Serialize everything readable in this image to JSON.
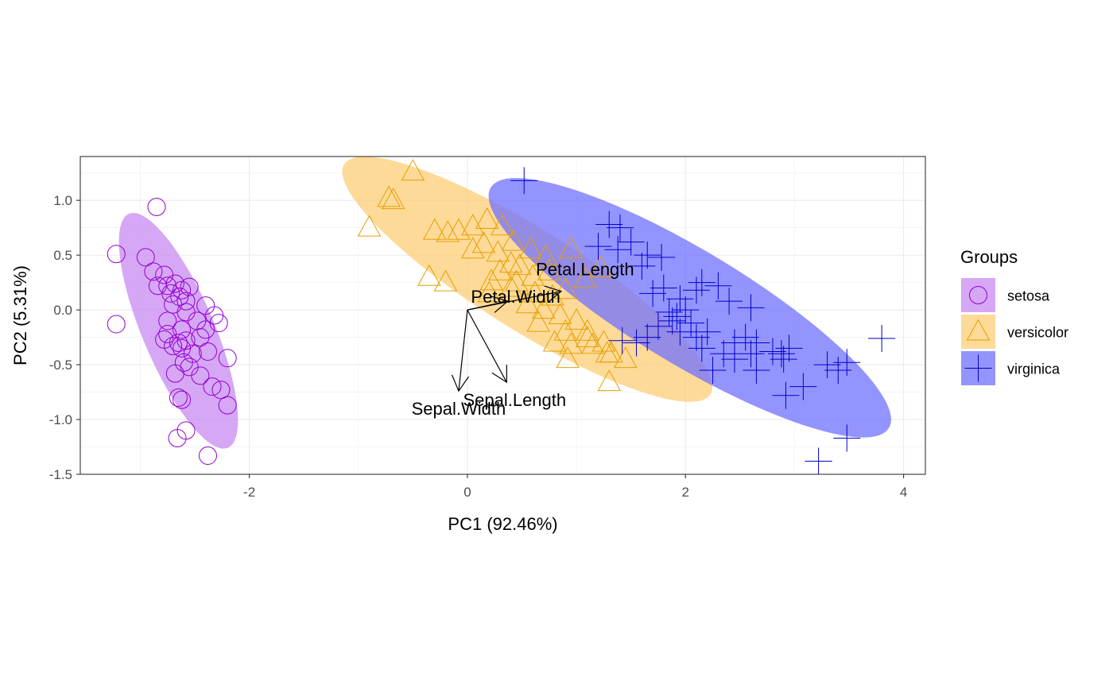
{
  "chart_data": {
    "type": "scatter",
    "title": "",
    "xlabel": "PC1 (92.46%)",
    "ylabel": "PC2 (5.31%)",
    "xlim": [
      -3.55,
      4.2
    ],
    "ylim": [
      -1.5,
      1.4
    ],
    "x_ticks": [
      -2,
      0,
      2,
      4
    ],
    "y_ticks": [
      1.0,
      0.5,
      0.0,
      -0.5,
      -1.0,
      -1.5
    ],
    "x_tick_labels": [
      "-2",
      "0",
      "2",
      "4"
    ],
    "y_tick_labels": [
      "1.0",
      "0.5",
      "0.0",
      "-0.5",
      "-1.0",
      "-1.5"
    ],
    "grid": true,
    "legend": {
      "title": "Groups",
      "placement": "right",
      "entries": [
        "setosa",
        "versicolor",
        "virginica"
      ]
    },
    "series": [
      {
        "name": "setosa",
        "color": "#9400D3",
        "fill": "#C88AF0",
        "shape": "circle",
        "ellipse": {
          "cx": -2.65,
          "cy": -0.19,
          "rx": 1.16,
          "ry": 0.33,
          "angle": -67
        },
        "points": [
          [
            -2.85,
            0.94
          ],
          [
            -3.22,
            0.51
          ],
          [
            -2.95,
            0.48
          ],
          [
            -2.88,
            0.35
          ],
          [
            -2.78,
            0.32
          ],
          [
            -2.75,
            0.22
          ],
          [
            -2.68,
            0.24
          ],
          [
            -2.62,
            0.18
          ],
          [
            -2.55,
            0.21
          ],
          [
            -2.72,
            0.15
          ],
          [
            -2.58,
            0.08
          ],
          [
            -2.64,
            0.12
          ],
          [
            -2.84,
            0.22
          ],
          [
            -2.7,
            0.05
          ],
          [
            -3.22,
            -0.13
          ],
          [
            -2.4,
            0.04
          ],
          [
            -2.32,
            -0.05
          ],
          [
            -2.48,
            -0.1
          ],
          [
            -2.58,
            -0.02
          ],
          [
            -2.75,
            -0.1
          ],
          [
            -2.62,
            -0.18
          ],
          [
            -2.4,
            -0.18
          ],
          [
            -2.28,
            -0.12
          ],
          [
            -2.78,
            -0.27
          ],
          [
            -2.65,
            -0.3
          ],
          [
            -2.7,
            -0.33
          ],
          [
            -2.58,
            -0.28
          ],
          [
            -2.52,
            -0.4
          ],
          [
            -2.38,
            -0.38
          ],
          [
            -2.2,
            -0.44
          ],
          [
            -2.55,
            -0.52
          ],
          [
            -2.6,
            -0.48
          ],
          [
            -2.45,
            -0.6
          ],
          [
            -2.68,
            -0.58
          ],
          [
            -2.34,
            -0.7
          ],
          [
            -2.26,
            -0.73
          ],
          [
            -2.62,
            -0.82
          ],
          [
            -2.65,
            -0.8
          ],
          [
            -2.2,
            -0.87
          ],
          [
            -2.58,
            -1.1
          ],
          [
            -2.66,
            -1.17
          ],
          [
            -2.38,
            -1.33
          ],
          [
            -2.75,
            -0.22
          ],
          [
            -2.45,
            -0.25
          ],
          [
            -2.62,
            -0.35
          ]
        ]
      },
      {
        "name": "versicolor",
        "color": "#E69F00",
        "fill": "#FCCD75",
        "shape": "triangle",
        "ellipse": {
          "cx": 0.55,
          "cy": 0.28,
          "rx": 1.98,
          "ry": 0.46,
          "angle": -32
        },
        "points": [
          [
            -0.5,
            1.26
          ],
          [
            -0.72,
            1.02
          ],
          [
            -0.68,
            1.0
          ],
          [
            -0.9,
            0.75
          ],
          [
            -0.3,
            0.72
          ],
          [
            -0.18,
            0.7
          ],
          [
            -0.08,
            0.72
          ],
          [
            0.05,
            0.76
          ],
          [
            0.18,
            0.82
          ],
          [
            0.32,
            0.76
          ],
          [
            0.42,
            0.62
          ],
          [
            0.15,
            0.6
          ],
          [
            0.05,
            0.55
          ],
          [
            0.28,
            0.52
          ],
          [
            0.58,
            0.55
          ],
          [
            0.72,
            0.48
          ],
          [
            0.95,
            0.55
          ],
          [
            0.48,
            0.4
          ],
          [
            0.3,
            0.35
          ],
          [
            0.6,
            0.3
          ],
          [
            0.45,
            0.25
          ],
          [
            0.22,
            0.26
          ],
          [
            0.4,
            0.2
          ],
          [
            0.62,
            0.15
          ],
          [
            0.78,
            0.12
          ],
          [
            0.9,
            0.18
          ],
          [
            1.08,
            0.28
          ],
          [
            1.22,
            0.38
          ],
          [
            -0.35,
            0.3
          ],
          [
            -0.2,
            0.25
          ],
          [
            0.2,
            0.15
          ],
          [
            0.55,
            0.05
          ],
          [
            0.7,
            0.0
          ],
          [
            0.85,
            -0.05
          ],
          [
            1.0,
            -0.1
          ],
          [
            0.65,
            -0.12
          ],
          [
            0.9,
            -0.2
          ],
          [
            1.1,
            -0.2
          ],
          [
            0.8,
            -0.3
          ],
          [
            0.95,
            -0.32
          ],
          [
            1.15,
            -0.32
          ],
          [
            1.25,
            -0.3
          ],
          [
            1.32,
            -0.4
          ],
          [
            0.92,
            -0.45
          ],
          [
            1.28,
            -0.4
          ],
          [
            1.45,
            -0.45
          ],
          [
            1.3,
            -0.66
          ],
          [
            1.1,
            -0.26
          ],
          [
            0.4,
            0.42
          ],
          [
            0.75,
            0.35
          ]
        ]
      },
      {
        "name": "virginica",
        "color": "#0000CD",
        "fill": "#7070FF",
        "shape": "plus",
        "ellipse": {
          "cx": 2.04,
          "cy": 0.02,
          "rx": 2.13,
          "ry": 0.52,
          "angle": -31
        },
        "points": [
          [
            0.52,
            1.18
          ],
          [
            1.3,
            0.78
          ],
          [
            1.4,
            0.75
          ],
          [
            1.5,
            0.62
          ],
          [
            1.65,
            0.5
          ],
          [
            1.2,
            0.58
          ],
          [
            1.38,
            0.55
          ],
          [
            1.78,
            0.48
          ],
          [
            1.6,
            0.4
          ],
          [
            2.15,
            0.25
          ],
          [
            2.3,
            0.22
          ],
          [
            1.8,
            0.2
          ],
          [
            2.1,
            0.18
          ],
          [
            2.4,
            0.08
          ],
          [
            1.95,
            0.1
          ],
          [
            1.7,
            0.15
          ],
          [
            2.6,
            0.02
          ],
          [
            1.85,
            -0.02
          ],
          [
            1.92,
            -0.06
          ],
          [
            2.05,
            -0.12
          ],
          [
            1.88,
            -0.1
          ],
          [
            1.75,
            -0.15
          ],
          [
            2.2,
            -0.2
          ],
          [
            2.45,
            -0.3
          ],
          [
            2.1,
            -0.25
          ],
          [
            1.95,
            -0.2
          ],
          [
            2.55,
            -0.25
          ],
          [
            2.65,
            -0.3
          ],
          [
            2.8,
            -0.38
          ],
          [
            2.35,
            -0.4
          ],
          [
            2.15,
            -0.35
          ],
          [
            2.45,
            -0.45
          ],
          [
            2.6,
            -0.4
          ],
          [
            2.25,
            -0.55
          ],
          [
            2.65,
            -0.55
          ],
          [
            2.95,
            -0.35
          ],
          [
            3.3,
            -0.5
          ],
          [
            3.4,
            -0.55
          ],
          [
            3.48,
            -0.48
          ],
          [
            3.8,
            -0.26
          ],
          [
            2.92,
            -0.78
          ],
          [
            3.08,
            -0.7
          ],
          [
            2.88,
            -0.4
          ],
          [
            3.48,
            -1.17
          ],
          [
            3.22,
            -1.38
          ],
          [
            2.9,
            -0.45
          ],
          [
            1.65,
            -0.25
          ],
          [
            1.55,
            -0.3
          ],
          [
            1.42,
            -0.28
          ],
          [
            2.0,
            0.0
          ]
        ]
      }
    ],
    "loadings": [
      {
        "name": "Petal.Length",
        "x": 0.86,
        "y": 0.17
      },
      {
        "name": "Petal.Width",
        "x": 0.37,
        "y": 0.08
      },
      {
        "name": "Sepal.Length",
        "x": 0.36,
        "y": -0.66
      },
      {
        "name": "Sepal.Width",
        "x": -0.08,
        "y": -0.74
      }
    ]
  }
}
